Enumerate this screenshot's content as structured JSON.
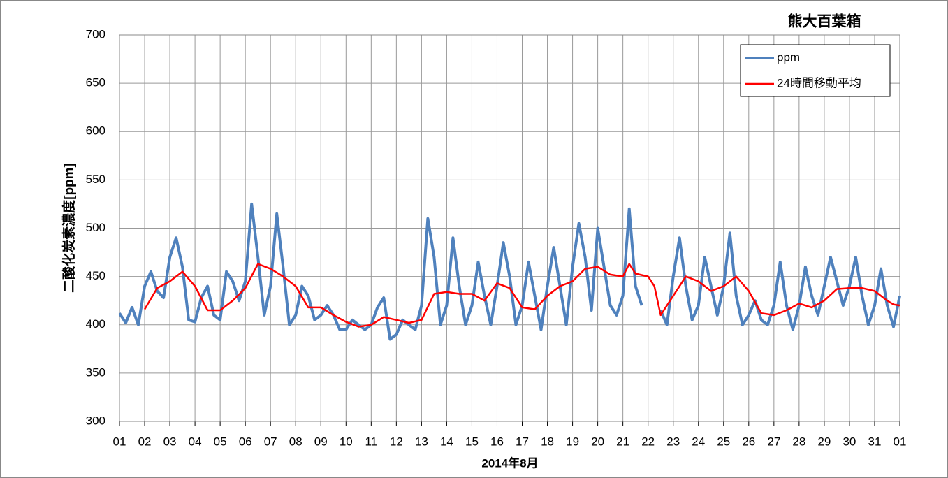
{
  "chart_data": {
    "type": "line",
    "title": "熊大百葉箱",
    "y_label": "二酸化炭素濃度[ppm]",
    "x_label": "2014年8月",
    "xlim": [
      0,
      31
    ],
    "xticks": [
      {
        "value": 0,
        "label": "01"
      },
      {
        "value": 1,
        "label": "02"
      },
      {
        "value": 2,
        "label": "03"
      },
      {
        "value": 3,
        "label": "04"
      },
      {
        "value": 4,
        "label": "05"
      },
      {
        "value": 5,
        "label": "06"
      },
      {
        "value": 6,
        "label": "07"
      },
      {
        "value": 7,
        "label": "08"
      },
      {
        "value": 8,
        "label": "09"
      },
      {
        "value": 9,
        "label": "10"
      },
      {
        "value": 10,
        "label": "11"
      },
      {
        "value": 11,
        "label": "12"
      },
      {
        "value": 12,
        "label": "13"
      },
      {
        "value": 13,
        "label": "14"
      },
      {
        "value": 14,
        "label": "15"
      },
      {
        "value": 15,
        "label": "16"
      },
      {
        "value": 16,
        "label": "17"
      },
      {
        "value": 17,
        "label": "18"
      },
      {
        "value": 18,
        "label": "19"
      },
      {
        "value": 19,
        "label": "20"
      },
      {
        "value": 20,
        "label": "21"
      },
      {
        "value": 21,
        "label": "22"
      },
      {
        "value": 22,
        "label": "23"
      },
      {
        "value": 23,
        "label": "24"
      },
      {
        "value": 24,
        "label": "25"
      },
      {
        "value": 25,
        "label": "26"
      },
      {
        "value": 26,
        "label": "27"
      },
      {
        "value": 27,
        "label": "28"
      },
      {
        "value": 28,
        "label": "29"
      },
      {
        "value": 29,
        "label": "30"
      },
      {
        "value": 30,
        "label": "31"
      },
      {
        "value": 31,
        "label": "01"
      }
    ],
    "ylim": [
      300,
      700
    ],
    "yticks": [
      300,
      350,
      400,
      450,
      500,
      550,
      600,
      650,
      700
    ],
    "grid": true,
    "legend": "upper right",
    "series": [
      {
        "name": "ppm",
        "color": "#4f81bd",
        "x": [
          0,
          0.25,
          0.5,
          0.75,
          1,
          1.25,
          1.5,
          1.75,
          2,
          2.25,
          2.5,
          2.75,
          3,
          3.25,
          3.5,
          3.75,
          4,
          4.25,
          4.5,
          4.75,
          5,
          5.25,
          5.5,
          5.75,
          6,
          6.25,
          6.5,
          6.75,
          7,
          7.25,
          7.5,
          7.75,
          8,
          8.25,
          8.5,
          8.75,
          9,
          9.25,
          9.5,
          9.75,
          10,
          10.25,
          10.5,
          10.75,
          11,
          11.25,
          11.5,
          11.75,
          12,
          12.25,
          12.5,
          12.75,
          13,
          13.25,
          13.5,
          13.75,
          14,
          14.25,
          14.5,
          14.75,
          15,
          15.25,
          15.5,
          15.75,
          16,
          16.25,
          16.5,
          16.75,
          17,
          17.25,
          17.5,
          17.75,
          18,
          18.25,
          18.5,
          18.75,
          19,
          19.25,
          19.5,
          19.75,
          20,
          20.25,
          20.5,
          20.75,
          21,
          21.25,
          21.5,
          21.75,
          22,
          22.25,
          22.5,
          22.75,
          23,
          23.25,
          23.5,
          23.75,
          24,
          24.25,
          24.5,
          24.75,
          25,
          25.25,
          25.5,
          25.75,
          26,
          26.25,
          26.5,
          26.75,
          27,
          27.25,
          27.5,
          27.75,
          28,
          28.25,
          28.5,
          28.75,
          29,
          29.25,
          29.5,
          29.75,
          30,
          30.25,
          30.5,
          30.75,
          31
        ],
        "values": [
          412,
          402,
          418,
          400,
          440,
          455,
          435,
          428,
          470,
          490,
          460,
          405,
          403,
          428,
          440,
          410,
          405,
          455,
          445,
          425,
          445,
          525,
          470,
          410,
          440,
          515,
          460,
          400,
          410,
          440,
          430,
          405,
          410,
          420,
          410,
          395,
          395,
          405,
          400,
          395,
          400,
          418,
          428,
          385,
          390,
          405,
          400,
          395,
          420,
          510,
          470,
          400,
          420,
          490,
          440,
          400,
          420,
          465,
          430,
          400,
          440,
          485,
          450,
          400,
          420,
          465,
          430,
          395,
          440,
          480,
          440,
          400,
          460,
          505,
          470,
          415,
          500,
          460,
          420,
          410,
          430,
          520,
          440,
          420,
          null,
          null,
          415,
          400,
          450,
          490,
          440,
          405,
          420,
          470,
          440,
          410,
          440,
          495,
          430,
          400,
          410,
          425,
          405,
          400,
          420,
          465,
          420,
          395,
          420,
          460,
          430,
          410,
          440,
          470,
          445,
          420,
          440,
          470,
          430,
          400,
          420,
          458,
          420,
          398,
          430
        ]
      },
      {
        "name": "24時間移動平均",
        "color": "#ff0000",
        "x": [
          1,
          1.5,
          2,
          2.5,
          3,
          3.5,
          4,
          4.5,
          5,
          5.5,
          6,
          6.5,
          7,
          7.5,
          8,
          8.5,
          9,
          9.5,
          10,
          10.5,
          11,
          11.5,
          12,
          12.5,
          13,
          13.5,
          14,
          14.5,
          15,
          15.5,
          16,
          16.5,
          17,
          17.5,
          18,
          18.5,
          19,
          19.5,
          20,
          20.25,
          20.5,
          21,
          21.25,
          21.5,
          21.75,
          22,
          22.5,
          23,
          23.5,
          24,
          24.5,
          25,
          25.5,
          26,
          26.5,
          27,
          27.5,
          28,
          28.5,
          29,
          29.5,
          30,
          30.5,
          30.75,
          31
        ],
        "values": [
          416,
          438,
          445,
          455,
          440,
          415,
          415,
          425,
          438,
          463,
          458,
          450,
          440,
          418,
          418,
          410,
          403,
          398,
          400,
          408,
          405,
          402,
          405,
          432,
          434,
          432,
          432,
          425,
          443,
          438,
          418,
          416,
          430,
          440,
          445,
          458,
          460,
          452,
          450,
          463,
          453,
          450,
          440,
          410,
          420,
          430,
          450,
          445,
          435,
          440,
          450,
          435,
          412,
          410,
          415,
          422,
          418,
          425,
          437,
          438,
          438,
          435,
          425,
          421,
          420
        ]
      }
    ]
  }
}
